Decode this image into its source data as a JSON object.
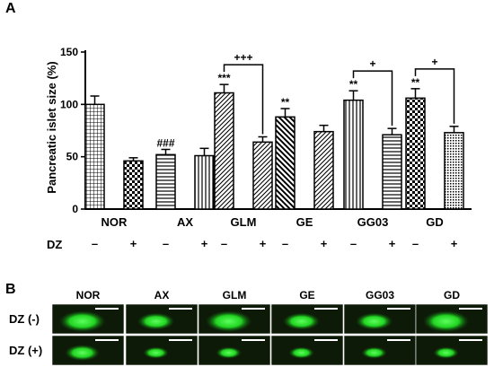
{
  "panel_a_label": "A",
  "panel_b_label": "B",
  "chart_data": {
    "type": "bar",
    "ylabel": "Pancreatic islet size (%)",
    "xlabel": "",
    "ylim": [
      0,
      150
    ],
    "yticks": [
      "0",
      "50",
      "100",
      "150"
    ],
    "categories": [
      "NOR",
      "AX",
      "GLM",
      "GE",
      "GG03",
      "GD"
    ],
    "dz_label": "DZ",
    "dz_minus": "–",
    "dz_plus": "+",
    "series": [
      {
        "values": [
          100,
          52,
          111,
          88,
          104,
          106
        ],
        "errors": [
          8,
          5,
          8,
          8,
          9,
          9
        ],
        "patterns": [
          "grid",
          "hlines",
          "diag",
          "diagback",
          "vlines",
          "checker"
        ]
      },
      {
        "values": [
          46,
          51,
          64,
          74,
          71,
          73
        ],
        "errors": [
          3,
          7,
          5,
          6,
          6,
          6
        ],
        "patterns": [
          "checker",
          "vlines",
          "diag",
          "diag",
          "hlines",
          "dots"
        ]
      }
    ],
    "bar_sig": [
      "",
      "###",
      "***",
      "**",
      "**",
      "**"
    ],
    "pair_sig": [
      "",
      "",
      "+++",
      "",
      "+",
      "+"
    ]
  },
  "panel_b": {
    "columns": [
      "NOR",
      "AX",
      "GLM",
      "GE",
      "GG03",
      "GD"
    ],
    "rows": [
      "DZ (-)",
      "DZ (+)"
    ],
    "image_background": "#0d1a07",
    "islet_color": "#2be02b",
    "scalebar_color": "#ffffff"
  }
}
